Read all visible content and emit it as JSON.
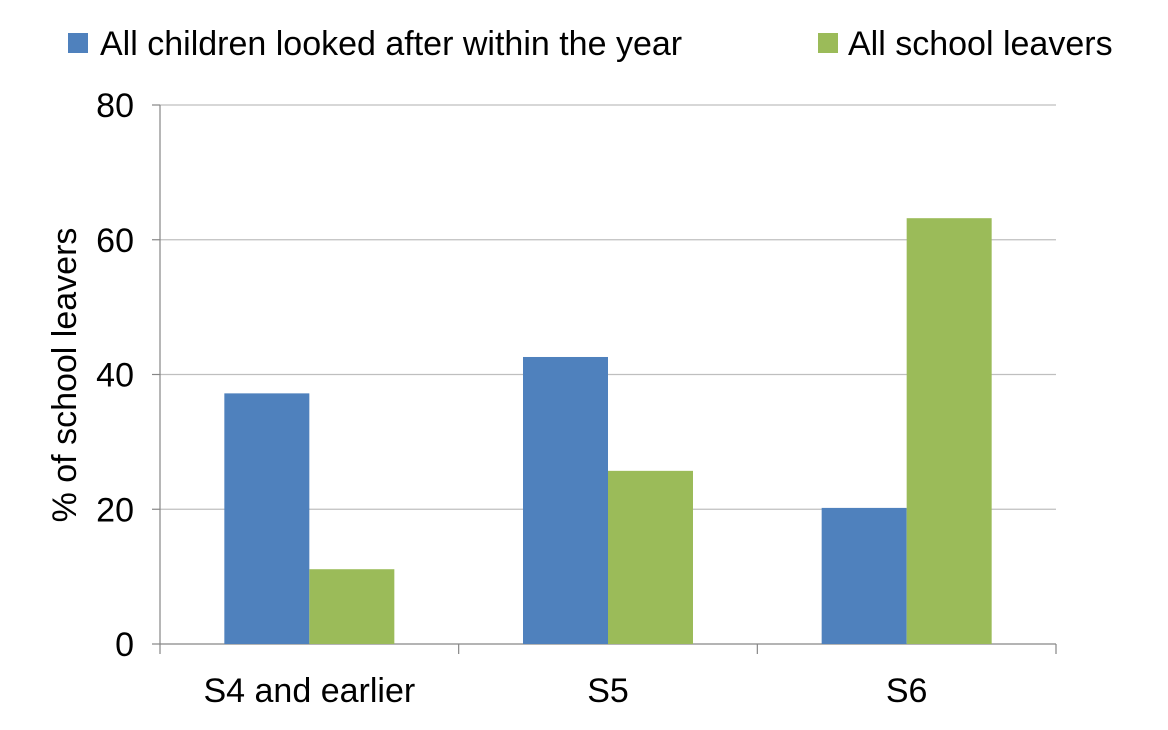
{
  "chart_data": {
    "type": "bar",
    "title": "",
    "xlabel": "",
    "ylabel": "% of school leavers",
    "ylim": [
      0,
      80
    ],
    "yticks": [
      0,
      20,
      40,
      60,
      80
    ],
    "grid": true,
    "legend_position": "top",
    "categories": [
      "S4 and earlier",
      "S5",
      "S6"
    ],
    "series": [
      {
        "name": "All children looked after within the year",
        "color": "#4F81BD",
        "values": [
          37.2,
          42.6,
          20.2
        ]
      },
      {
        "name": "All school leavers",
        "color": "#9BBB59",
        "values": [
          11.1,
          25.7,
          63.2
        ]
      }
    ]
  }
}
